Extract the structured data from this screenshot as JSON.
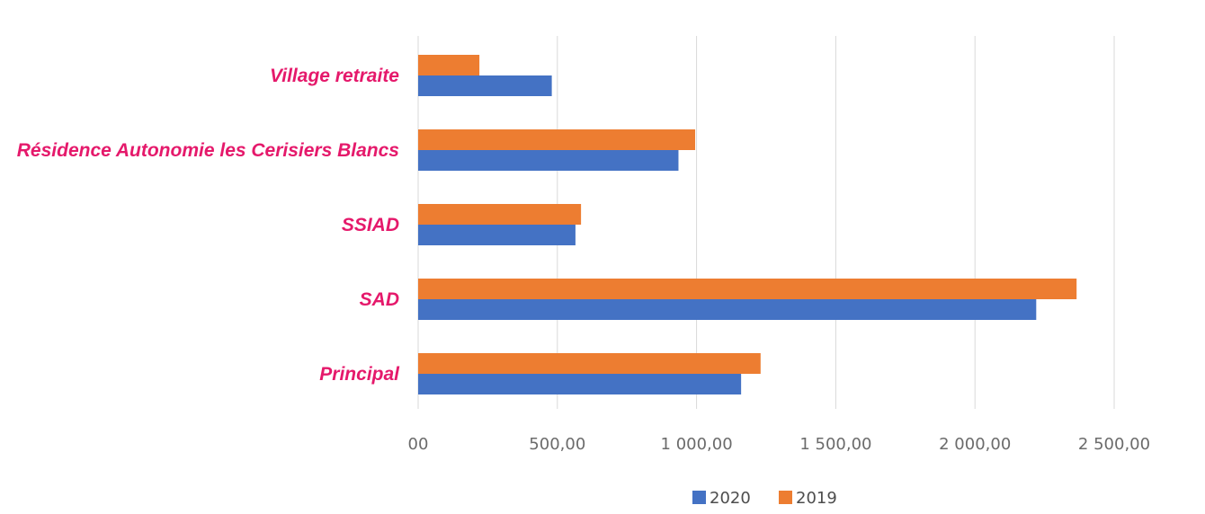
{
  "chart_data": {
    "type": "bar",
    "orientation": "horizontal",
    "categories": [
      "Village retraite",
      "Résidence Autonomie les Cerisiers Blancs",
      "SSIAD",
      "SAD",
      "Principal"
    ],
    "series": [
      {
        "name": "2019",
        "color": "#ed7d31",
        "values": [
          220,
          995,
          585,
          2365,
          1230
        ]
      },
      {
        "name": "2020",
        "color": "#4472c4",
        "values": [
          480,
          935,
          565,
          2220,
          1160
        ]
      }
    ],
    "x_ticks": [
      0,
      500,
      1000,
      1500,
      2000,
      2500
    ],
    "x_tick_labels": [
      "00",
      "500,00",
      "1 000,00",
      "1 500,00",
      "2 000,00",
      "2 500,00"
    ],
    "xlim": [
      0,
      2500
    ],
    "grid": true,
    "legend": {
      "position": "bottom",
      "entries": [
        {
          "label": "2020",
          "color": "#4472c4"
        },
        {
          "label": "2019",
          "color": "#ed7d31"
        }
      ]
    },
    "colors": {
      "category_label": "#e5196b",
      "gridline": "#d9d9d9",
      "tick_label": "#6b6b6b"
    }
  }
}
